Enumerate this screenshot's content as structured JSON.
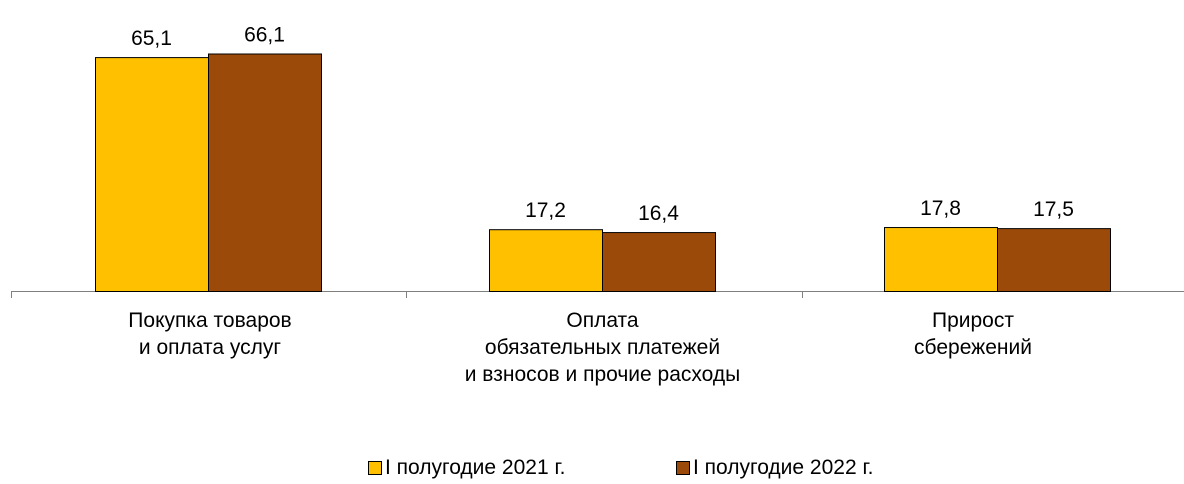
{
  "chart_data": {
    "type": "bar",
    "categories": [
      "Покупка товаров\nи оплата услуг",
      "Оплата\nобязательных платежей\nи взносов и прочие расходы",
      "Прирост\nсбережений"
    ],
    "series": [
      {
        "name": "I полугодие 2021 г.",
        "color": "#FFC000",
        "values": [
          65.1,
          17.2,
          17.8
        ],
        "labels": [
          "65,1",
          "17,2",
          "17,8"
        ]
      },
      {
        "name": "I полугодие 2022 г.",
        "color": "#9C4A09",
        "values": [
          66.1,
          16.4,
          17.5
        ],
        "labels": [
          "66,1",
          "16,4",
          "17,5"
        ]
      }
    ],
    "ylim": [
      0,
      70
    ],
    "grid": false,
    "legend_position": "bottom"
  }
}
